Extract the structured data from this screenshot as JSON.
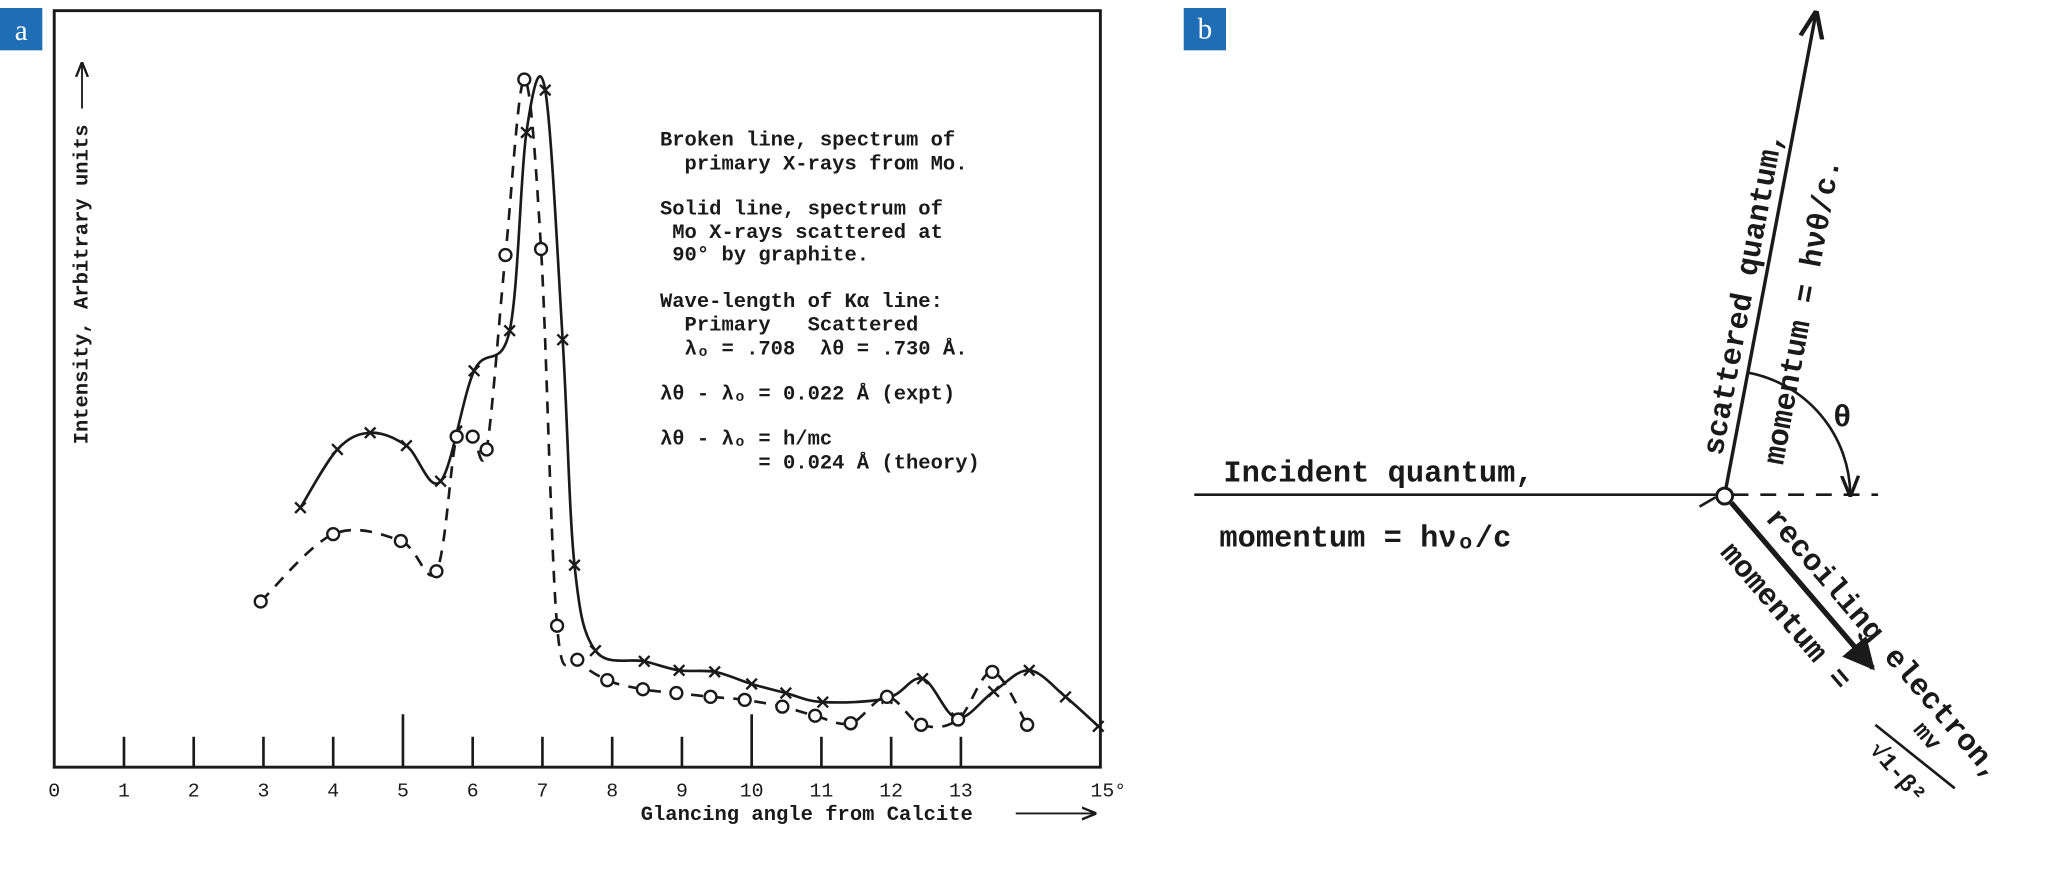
{
  "panel_labels": [
    "a",
    "b"
  ],
  "chart_data": {
    "type": "line",
    "x_label": "Glancing angle from Calcite",
    "y_label": "Intensity, Arbitrary units",
    "xlim": [
      0,
      15
    ],
    "ylim": [
      0,
      100
    ],
    "xticks": [
      0,
      1,
      2,
      3,
      4,
      5,
      6,
      7,
      8,
      9,
      10,
      11,
      12,
      13,
      {
        "value": 15,
        "label": "15°"
      }
    ],
    "series": [
      {
        "marker": "x",
        "linestyle": "solid",
        "color": "#1a1a1a",
        "x": [
          3.53,
          4.06,
          4.53,
          5.05,
          5.54,
          6.02,
          6.53,
          6.77,
          7.04,
          7.29,
          7.46,
          7.76,
          8.46,
          8.96,
          9.47,
          10.0,
          10.49,
          11.02,
          11.94,
          12.45,
          12.94,
          13.47,
          13.98,
          14.5,
          14.97
        ],
        "values": [
          34.3,
          42.0,
          44.2,
          42.5,
          37.8,
          52.4,
          57.7,
          83.9,
          89.5,
          56.5,
          26.7,
          15.4,
          14.0,
          12.8,
          12.6,
          11.0,
          9.8,
          8.6,
          9.1,
          11.7,
          6.5,
          10.0,
          12.8,
          9.3,
          5.4
        ]
      },
      {
        "marker": "o",
        "linestyle": "dashed",
        "color": "#1a1a1a",
        "x": [
          2.96,
          4.0,
          4.97,
          5.48,
          5.77,
          6.0,
          6.2,
          6.47,
          6.74,
          6.98,
          7.21,
          7.5,
          7.93,
          8.44,
          8.92,
          9.41,
          9.9,
          10.44,
          10.91,
          11.42,
          11.94,
          12.43,
          12.96,
          13.45,
          13.95
        ],
        "values": [
          21.9,
          30.8,
          29.9,
          25.9,
          43.7,
          43.7,
          42.0,
          67.7,
          90.9,
          68.5,
          18.7,
          14.2,
          11.5,
          10.3,
          9.8,
          9.3,
          8.9,
          8.0,
          6.8,
          5.8,
          9.3,
          5.6,
          6.3,
          12.6,
          5.6
        ]
      }
    ],
    "annotations": [
      "Broken line, spectrum of",
      "  primary X-rays from Mo.",
      "Solid line, spectrum of",
      " Mo X-rays scattered at",
      " 90° by graphite.",
      "Wave-length of Kα line:",
      "  Primary   Scattered",
      "  λₒ = .708  λθ = .730 Å.",
      "λθ - λₒ = 0.022 Å (expt)",
      "λθ - λₒ = h/mc",
      "        = 0.024 Å (theory)"
    ]
  },
  "diagram": {
    "incident_line1": "Incident quantum,",
    "incident_line2": "momentum = hνₒ/c",
    "scattered_line1": "scattered quantum,",
    "scattered_line2": "momentum = hνθ/c.",
    "angle": "θ",
    "recoil_line1": "recoiling electron,",
    "recoil_line2": "momentum =",
    "recoil_numerator": "mv",
    "recoil_denominator": "√1-β²"
  }
}
